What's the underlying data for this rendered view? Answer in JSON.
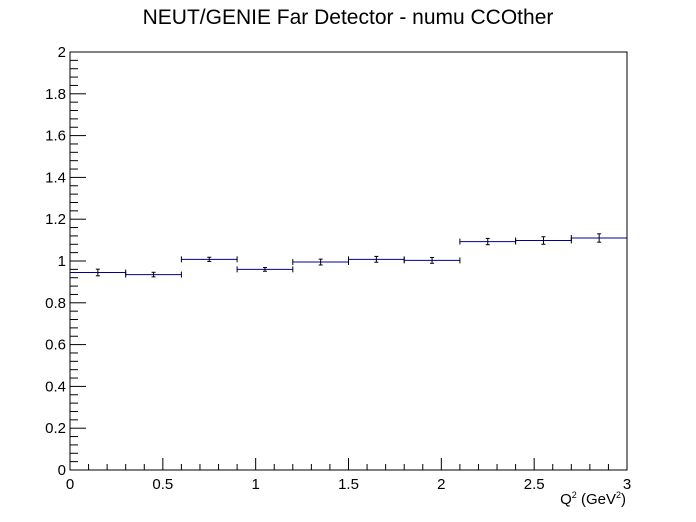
{
  "chart_data": {
    "type": "scatter",
    "title": "NEUT/GENIE Far Detector - numu CCOther",
    "xlabel": {
      "base": "Q",
      "sup1": "2",
      "unit_open": " (GeV",
      "sup2": "2",
      "unit_close": ")"
    },
    "ylabel": "",
    "xlim": [
      0,
      3
    ],
    "ylim": [
      0,
      2
    ],
    "xticks": [
      "0",
      "0.5",
      "1",
      "1.5",
      "2",
      "2.5",
      "3"
    ],
    "yticks": [
      "0",
      "0.2",
      "0.4",
      "0.6",
      "0.8",
      "1",
      "1.2",
      "1.4",
      "1.6",
      "1.8",
      "2"
    ],
    "grid": false,
    "legend": "none",
    "marker_color": "#000099",
    "points": [
      {
        "x_low": 0.0,
        "x_high": 0.3,
        "y": 0.945,
        "err": 0.016
      },
      {
        "x_low": 0.3,
        "x_high": 0.6,
        "y": 0.935,
        "err": 0.011
      },
      {
        "x_low": 0.6,
        "x_high": 0.9,
        "y": 1.008,
        "err": 0.01
      },
      {
        "x_low": 0.9,
        "x_high": 1.2,
        "y": 0.96,
        "err": 0.009
      },
      {
        "x_low": 1.2,
        "x_high": 1.5,
        "y": 0.995,
        "err": 0.014
      },
      {
        "x_low": 1.5,
        "x_high": 1.8,
        "y": 1.008,
        "err": 0.014
      },
      {
        "x_low": 1.8,
        "x_high": 2.1,
        "y": 1.003,
        "err": 0.014
      },
      {
        "x_low": 2.1,
        "x_high": 2.4,
        "y": 1.093,
        "err": 0.015
      },
      {
        "x_low": 2.4,
        "x_high": 2.7,
        "y": 1.098,
        "err": 0.018
      },
      {
        "x_low": 2.7,
        "x_high": 3.0,
        "y": 1.11,
        "err": 0.02
      }
    ]
  }
}
